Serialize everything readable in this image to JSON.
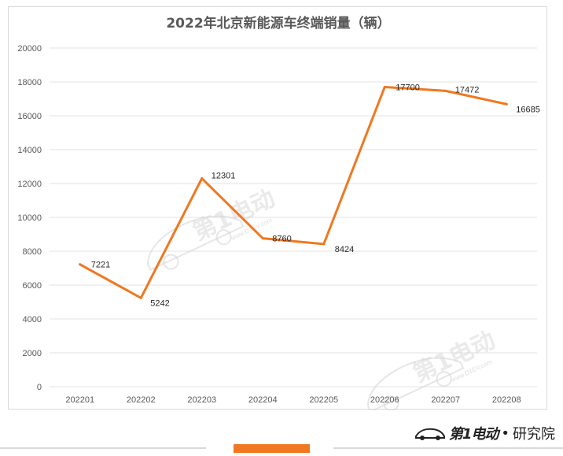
{
  "chart_data": {
    "type": "line",
    "title": "2022年北京新能源车终端销量（辆）",
    "categories": [
      "202201",
      "202202",
      "202203",
      "202204",
      "202205",
      "202206",
      "202207",
      "202208"
    ],
    "series": [
      {
        "values": [
          7221,
          5242,
          12301,
          8760,
          8424,
          17700,
          17472,
          16685
        ],
        "color": "#f07820"
      }
    ],
    "ylim": [
      0,
      20000
    ],
    "yticks": [
      0,
      2000,
      4000,
      6000,
      8000,
      10000,
      12000,
      14000,
      16000,
      18000,
      20000
    ],
    "grid": true,
    "legend": "none"
  },
  "watermark": {
    "text": "第1电动",
    "url": "www.D1EV.com"
  },
  "brand": {
    "logo": "第1电动",
    "dot": "•",
    "suffix": "研究院"
  }
}
